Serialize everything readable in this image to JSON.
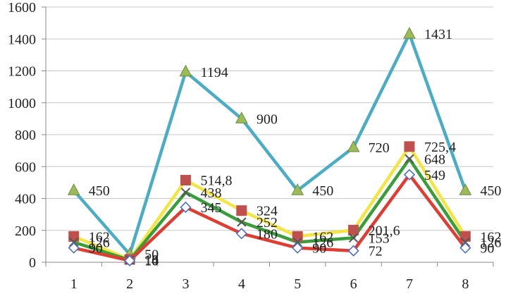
{
  "chart_data": {
    "type": "line",
    "title": "",
    "xlabel": "",
    "ylabel": "",
    "categories": [
      "1",
      "2",
      "3",
      "4",
      "5",
      "6",
      "7",
      "8"
    ],
    "ylim": [
      0,
      1600
    ],
    "yticks": [
      "0",
      "200",
      "400",
      "600",
      "800",
      "1000",
      "1200",
      "1400",
      "1600"
    ],
    "grid": "horizontal",
    "legend": "none",
    "series": [
      {
        "values": [
          450,
          50,
          1194,
          900,
          450,
          720,
          1431,
          450
        ],
        "labels": [
          "450",
          "50",
          "1194",
          "900",
          "450",
          "720",
          "1431",
          "450"
        ],
        "color": "#4bacc6",
        "marker": "triangle",
        "marker_color": "#9bbb59"
      },
      {
        "values": [
          162,
          18,
          514.8,
          324,
          162,
          201.6,
          725.4,
          162
        ],
        "labels": [
          "162",
          "18",
          "514,8",
          "324",
          "162",
          "201,6",
          "725,4",
          "162"
        ],
        "color": "#f2e544",
        "marker": "square",
        "marker_color": "#c0504d"
      },
      {
        "values": [
          126,
          14,
          438,
          252,
          126,
          153,
          648,
          126
        ],
        "labels": [
          "126",
          "14",
          "438",
          "252",
          "126",
          "153",
          "648",
          "126"
        ],
        "color": "#3a9d3a",
        "marker": "x",
        "marker_color": "#555555"
      },
      {
        "values": [
          90,
          10,
          345,
          180,
          90,
          72,
          549,
          90
        ],
        "labels": [
          "90",
          "10",
          "345",
          "180",
          "90",
          "72",
          "549",
          "90"
        ],
        "color": "#e03c31",
        "marker": "diamond",
        "marker_color": "#4f6fc4"
      }
    ]
  }
}
